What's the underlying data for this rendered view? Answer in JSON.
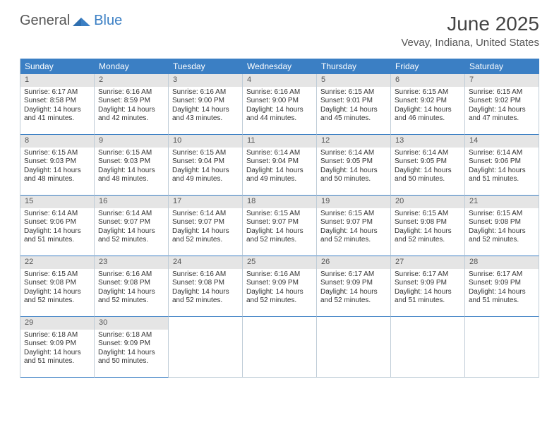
{
  "logo": {
    "text1": "General",
    "text2": "Blue"
  },
  "title": "June 2025",
  "location": "Vevay, Indiana, United States",
  "colors": {
    "header_bg": "#3b7fc4",
    "header_text": "#ffffff",
    "daynum_bg": "#e5e5e5",
    "border": "#c0cdd8",
    "divider": "#3b7fc4"
  },
  "dow": [
    "Sunday",
    "Monday",
    "Tuesday",
    "Wednesday",
    "Thursday",
    "Friday",
    "Saturday"
  ],
  "weeks": [
    [
      {
        "n": "1",
        "sr": "6:17 AM",
        "ss": "8:58 PM",
        "dh": "14",
        "dm": "41"
      },
      {
        "n": "2",
        "sr": "6:16 AM",
        "ss": "8:59 PM",
        "dh": "14",
        "dm": "42"
      },
      {
        "n": "3",
        "sr": "6:16 AM",
        "ss": "9:00 PM",
        "dh": "14",
        "dm": "43"
      },
      {
        "n": "4",
        "sr": "6:16 AM",
        "ss": "9:00 PM",
        "dh": "14",
        "dm": "44"
      },
      {
        "n": "5",
        "sr": "6:15 AM",
        "ss": "9:01 PM",
        "dh": "14",
        "dm": "45"
      },
      {
        "n": "6",
        "sr": "6:15 AM",
        "ss": "9:02 PM",
        "dh": "14",
        "dm": "46"
      },
      {
        "n": "7",
        "sr": "6:15 AM",
        "ss": "9:02 PM",
        "dh": "14",
        "dm": "47"
      }
    ],
    [
      {
        "n": "8",
        "sr": "6:15 AM",
        "ss": "9:03 PM",
        "dh": "14",
        "dm": "48"
      },
      {
        "n": "9",
        "sr": "6:15 AM",
        "ss": "9:03 PM",
        "dh": "14",
        "dm": "48"
      },
      {
        "n": "10",
        "sr": "6:15 AM",
        "ss": "9:04 PM",
        "dh": "14",
        "dm": "49"
      },
      {
        "n": "11",
        "sr": "6:14 AM",
        "ss": "9:04 PM",
        "dh": "14",
        "dm": "49"
      },
      {
        "n": "12",
        "sr": "6:14 AM",
        "ss": "9:05 PM",
        "dh": "14",
        "dm": "50"
      },
      {
        "n": "13",
        "sr": "6:14 AM",
        "ss": "9:05 PM",
        "dh": "14",
        "dm": "50"
      },
      {
        "n": "14",
        "sr": "6:14 AM",
        "ss": "9:06 PM",
        "dh": "14",
        "dm": "51"
      }
    ],
    [
      {
        "n": "15",
        "sr": "6:14 AM",
        "ss": "9:06 PM",
        "dh": "14",
        "dm": "51"
      },
      {
        "n": "16",
        "sr": "6:14 AM",
        "ss": "9:07 PM",
        "dh": "14",
        "dm": "52"
      },
      {
        "n": "17",
        "sr": "6:14 AM",
        "ss": "9:07 PM",
        "dh": "14",
        "dm": "52"
      },
      {
        "n": "18",
        "sr": "6:15 AM",
        "ss": "9:07 PM",
        "dh": "14",
        "dm": "52"
      },
      {
        "n": "19",
        "sr": "6:15 AM",
        "ss": "9:07 PM",
        "dh": "14",
        "dm": "52"
      },
      {
        "n": "20",
        "sr": "6:15 AM",
        "ss": "9:08 PM",
        "dh": "14",
        "dm": "52"
      },
      {
        "n": "21",
        "sr": "6:15 AM",
        "ss": "9:08 PM",
        "dh": "14",
        "dm": "52"
      }
    ],
    [
      {
        "n": "22",
        "sr": "6:15 AM",
        "ss": "9:08 PM",
        "dh": "14",
        "dm": "52"
      },
      {
        "n": "23",
        "sr": "6:16 AM",
        "ss": "9:08 PM",
        "dh": "14",
        "dm": "52"
      },
      {
        "n": "24",
        "sr": "6:16 AM",
        "ss": "9:08 PM",
        "dh": "14",
        "dm": "52"
      },
      {
        "n": "25",
        "sr": "6:16 AM",
        "ss": "9:09 PM",
        "dh": "14",
        "dm": "52"
      },
      {
        "n": "26",
        "sr": "6:17 AM",
        "ss": "9:09 PM",
        "dh": "14",
        "dm": "52"
      },
      {
        "n": "27",
        "sr": "6:17 AM",
        "ss": "9:09 PM",
        "dh": "14",
        "dm": "51"
      },
      {
        "n": "28",
        "sr": "6:17 AM",
        "ss": "9:09 PM",
        "dh": "14",
        "dm": "51"
      }
    ],
    [
      {
        "n": "29",
        "sr": "6:18 AM",
        "ss": "9:09 PM",
        "dh": "14",
        "dm": "51"
      },
      {
        "n": "30",
        "sr": "6:18 AM",
        "ss": "9:09 PM",
        "dh": "14",
        "dm": "50"
      },
      null,
      null,
      null,
      null,
      null
    ]
  ],
  "labels": {
    "sunrise": "Sunrise:",
    "sunset": "Sunset:",
    "daylight_prefix": "Daylight:",
    "hours_word": "hours",
    "and_word": "and",
    "minutes_suffix": "minutes."
  }
}
